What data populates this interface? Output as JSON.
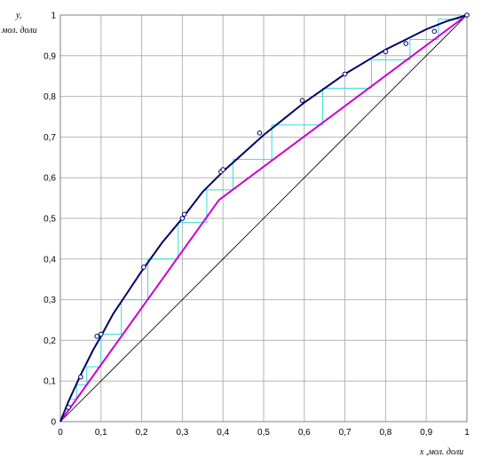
{
  "chart_data": {
    "type": "line",
    "xlabel": "x ,мол. доли",
    "ylabel_line1": "y,",
    "ylabel_line2": "мол. доли",
    "xlim": [
      0,
      1
    ],
    "ylim": [
      0,
      1
    ],
    "grid": true,
    "xticks": [
      "0",
      "0,1",
      "0,2",
      "0,3",
      "0,4",
      "0,5",
      "0,6",
      "0,7",
      "0,8",
      "0,9",
      "1"
    ],
    "yticks": [
      "0",
      "0,1",
      "0,2",
      "0,3",
      "0,4",
      "0,5",
      "0,6",
      "0,7",
      "0,8",
      "0,9",
      "1"
    ],
    "colors": {
      "equilibrium": "#000066",
      "operating": "#cc00cc",
      "steps": "#33dddd",
      "diagonal": "#000000",
      "grid": "#b4b4b4"
    },
    "equilibrium_curve": {
      "x": [
        0,
        0.02,
        0.05,
        0.08,
        0.1,
        0.13,
        0.16,
        0.2,
        0.25,
        0.3,
        0.35,
        0.4,
        0.45,
        0.5,
        0.55,
        0.6,
        0.65,
        0.7,
        0.75,
        0.8,
        0.85,
        0.9,
        0.95,
        1
      ],
      "y": [
        0,
        0.05,
        0.115,
        0.175,
        0.21,
        0.265,
        0.31,
        0.37,
        0.44,
        0.5,
        0.565,
        0.615,
        0.66,
        0.705,
        0.745,
        0.785,
        0.82,
        0.855,
        0.885,
        0.915,
        0.94,
        0.965,
        0.985,
        1
      ]
    },
    "experimental_points": {
      "x": [
        0.02,
        0.05,
        0.09,
        0.1,
        0.205,
        0.3,
        0.305,
        0.395,
        0.4,
        0.49,
        0.595,
        0.7,
        0.8,
        0.85,
        0.92,
        1.0
      ],
      "y": [
        0.035,
        0.11,
        0.21,
        0.215,
        0.38,
        0.5,
        0.51,
        0.615,
        0.62,
        0.71,
        0.79,
        0.855,
        0.91,
        0.93,
        0.96,
        1.0
      ]
    },
    "operating_line": {
      "x": [
        0,
        0.39,
        1
      ],
      "y": [
        0,
        0.545,
        1
      ]
    },
    "diagonal": {
      "x": [
        0,
        1
      ],
      "y": [
        0,
        1
      ]
    },
    "steps": {
      "x": [
        1.0,
        0.985,
        0.985,
        0.93,
        0.93,
        0.86,
        0.86,
        0.765,
        0.765,
        0.645,
        0.645,
        0.52,
        0.52,
        0.425,
        0.425,
        0.36,
        0.36,
        0.29,
        0.29,
        0.215,
        0.215,
        0.15,
        0.15,
        0.1,
        0.1,
        0.065,
        0.065,
        0.04,
        0.04,
        0.025
      ],
      "y": [
        1.0,
        1.0,
        0.99,
        0.99,
        0.94,
        0.94,
        0.89,
        0.89,
        0.82,
        0.82,
        0.73,
        0.73,
        0.645,
        0.645,
        0.57,
        0.57,
        0.49,
        0.49,
        0.4,
        0.4,
        0.3,
        0.3,
        0.215,
        0.215,
        0.135,
        0.135,
        0.09,
        0.09,
        0.055,
        0.055
      ]
    }
  }
}
